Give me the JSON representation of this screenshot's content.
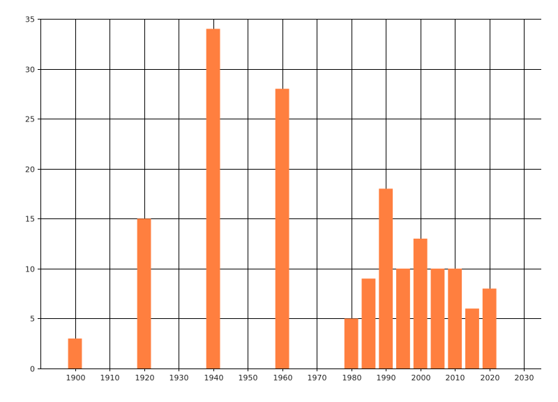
{
  "chart_data": {
    "type": "bar",
    "title": "",
    "xlabel": "",
    "ylabel": "",
    "x": [
      1900,
      1920,
      1940,
      1960,
      1980,
      1985,
      1990,
      1995,
      2000,
      2005,
      2010,
      2015,
      2020
    ],
    "values": [
      3,
      15,
      34,
      28,
      5,
      9,
      18,
      10,
      13,
      10,
      10,
      6,
      8
    ],
    "bar_width_years": 4,
    "xlim": [
      1890,
      2035
    ],
    "ylim": [
      0,
      35
    ],
    "x_ticks": [
      1900,
      1910,
      1920,
      1930,
      1940,
      1950,
      1960,
      1970,
      1980,
      1990,
      2000,
      2010,
      2020,
      2030
    ],
    "y_ticks": [
      0,
      5,
      10,
      15,
      20,
      25,
      30,
      35
    ],
    "grid": true,
    "legend": "none",
    "colors": {
      "bar": "#FF7F3F",
      "grid": "#000000",
      "axis": "#000000",
      "text": "#222222"
    }
  }
}
